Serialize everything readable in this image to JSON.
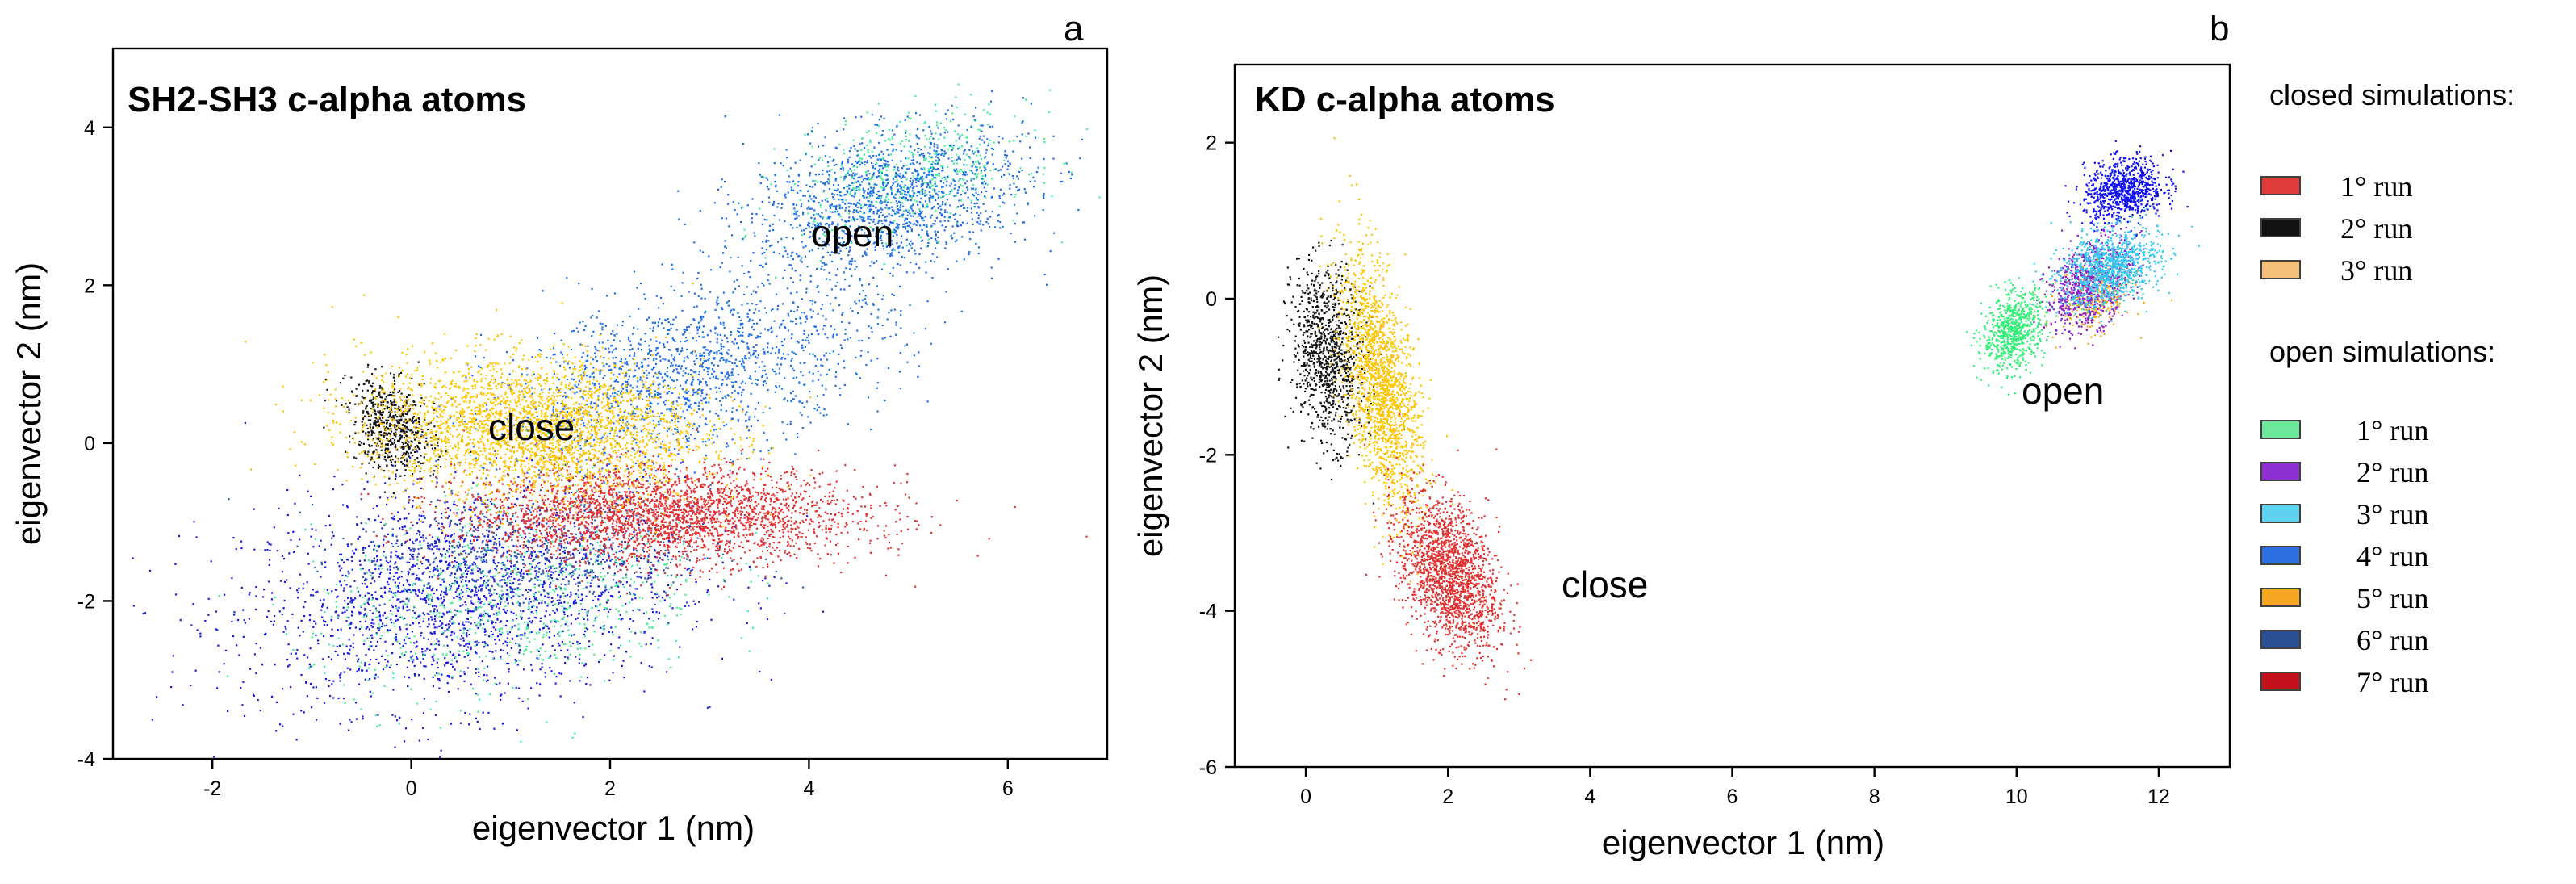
{
  "chart_data": [
    {
      "panel": "a",
      "type": "scatter",
      "title": "SH2-SH3 c-alpha atoms",
      "xlabel": "eigenvector 1 (nm)",
      "ylabel": "eigenvector 2 (nm)",
      "xlim": [
        -3,
        7
      ],
      "ylim": [
        -4,
        5
      ],
      "xticks": [
        -2,
        0,
        2,
        4,
        6
      ],
      "yticks": [
        -4,
        -2,
        0,
        2,
        4
      ],
      "annotations": [
        {
          "text": "close",
          "x": 1.3,
          "y": 0.2
        },
        {
          "text": "open",
          "x": 4.5,
          "y": 2.7
        }
      ],
      "clusters": [
        {
          "name": "open 6° run",
          "color": "#1a1ae0",
          "cx": 0.5,
          "cy": -1.9,
          "sx": 1.1,
          "sy": 0.7,
          "rho": 0.2,
          "n": 2200
        },
        {
          "name": "open 1° run",
          "color": "#44ee99",
          "cx": 1.0,
          "cy": -2.0,
          "sx": 1.0,
          "sy": 0.6,
          "rho": 0.25,
          "n": 700
        },
        {
          "name": "open 1° run (upper)",
          "color": "#44ee99",
          "cx": 5.0,
          "cy": 3.4,
          "sx": 0.6,
          "sy": 0.4,
          "rho": 0.3,
          "n": 500
        },
        {
          "name": "open 4° run",
          "color": "#1f6fe6",
          "cx": 2.8,
          "cy": 0.9,
          "sx": 1.0,
          "sy": 0.6,
          "rho": 0.5,
          "n": 1700
        },
        {
          "name": "open 4° run (upper)",
          "color": "#1f6fe6",
          "cx": 4.8,
          "cy": 3.1,
          "sx": 0.7,
          "sy": 0.45,
          "rho": 0.3,
          "n": 1500
        },
        {
          "name": "open 6° run (lower)",
          "color": "#2e5ea8",
          "cx": 1.2,
          "cy": -1.4,
          "sx": 0.9,
          "sy": 0.4,
          "rho": 0.1,
          "n": 600
        },
        {
          "name": "closed 1° run",
          "color": "#e03030",
          "cx": 2.5,
          "cy": -0.9,
          "sx": 1.0,
          "sy": 0.3,
          "rho": 0.0,
          "n": 2800
        },
        {
          "name": "closed 2° run",
          "color": "#111111",
          "cx": -0.2,
          "cy": 0.2,
          "sx": 0.22,
          "sy": 0.3,
          "rho": -0.3,
          "n": 600
        },
        {
          "name": "closed 3° run",
          "color": "#ffc400",
          "cx": 1.2,
          "cy": 0.2,
          "sx": 0.85,
          "sy": 0.45,
          "rho": -0.1,
          "n": 2800
        }
      ]
    },
    {
      "panel": "b",
      "type": "scatter",
      "title": "KD c-alpha atoms",
      "xlabel": "eigenvector 1 (nm)",
      "ylabel": "eigenvector 2 (nm)",
      "xlim": [
        -1,
        13
      ],
      "ylim": [
        -6,
        3
      ],
      "xticks": [
        0,
        2,
        4,
        6,
        8,
        10,
        12
      ],
      "yticks": [
        -6,
        -4,
        -2,
        0,
        2
      ],
      "annotations": [
        {
          "text": "close",
          "x": 4.1,
          "y": -3.8
        },
        {
          "text": "open",
          "x": 10.5,
          "y": -1.3
        }
      ],
      "clusters": [
        {
          "name": "closed 2° run",
          "color": "#111111",
          "cx": 0.3,
          "cy": -0.7,
          "sx": 0.25,
          "sy": 0.55,
          "rho": -0.2,
          "n": 1000
        },
        {
          "name": "closed 3° run",
          "color": "#ffc400",
          "cx": 1.05,
          "cy": -1.1,
          "sx": 0.28,
          "sy": 0.8,
          "rho": -0.55,
          "n": 1800
        },
        {
          "name": "closed 1° run",
          "color": "#e03030",
          "cx": 2.0,
          "cy": -3.5,
          "sx": 0.35,
          "sy": 0.5,
          "rho": -0.4,
          "n": 1800
        },
        {
          "name": "open 6° run",
          "color": "#1010ee",
          "cx": 11.5,
          "cy": 1.4,
          "sx": 0.28,
          "sy": 0.2,
          "rho": 0.2,
          "n": 800
        },
        {
          "name": "open 5° run",
          "color": "#f5a623",
          "cx": 11.1,
          "cy": 0.0,
          "sx": 0.25,
          "sy": 0.2,
          "rho": 0.2,
          "n": 300
        },
        {
          "name": "open 2° run",
          "color": "#8b1fc8",
          "cx": 11.0,
          "cy": 0.2,
          "sx": 0.3,
          "sy": 0.3,
          "rho": 0.4,
          "n": 700
        },
        {
          "name": "open 1° run",
          "color": "#33ee77",
          "cx": 9.95,
          "cy": -0.4,
          "sx": 0.22,
          "sy": 0.25,
          "rho": 0.3,
          "n": 700
        },
        {
          "name": "open 3° run",
          "color": "#36c8f0",
          "cx": 11.3,
          "cy": 0.4,
          "sx": 0.35,
          "sy": 0.25,
          "rho": 0.3,
          "n": 1000
        }
      ]
    }
  ],
  "legend": {
    "closed_header": "closed simulations:",
    "closed_items": [
      {
        "label": "1° run",
        "color": "#e03a3a"
      },
      {
        "label": "2° run",
        "color": "#111111"
      },
      {
        "label": "3° run",
        "color": "#f5c07a"
      }
    ],
    "open_header": "open simulations:",
    "open_items": [
      {
        "label": "1° run",
        "color": "#6fe79a"
      },
      {
        "label": "2° run",
        "color": "#8e2fd1"
      },
      {
        "label": "3° run",
        "color": "#5ed2f0"
      },
      {
        "label": "4° run",
        "color": "#2d6fe0"
      },
      {
        "label": "5° run",
        "color": "#f5a623"
      },
      {
        "label": "6° run",
        "color": "#2b4f95"
      },
      {
        "label": "7° run",
        "color": "#c4101a"
      }
    ]
  }
}
